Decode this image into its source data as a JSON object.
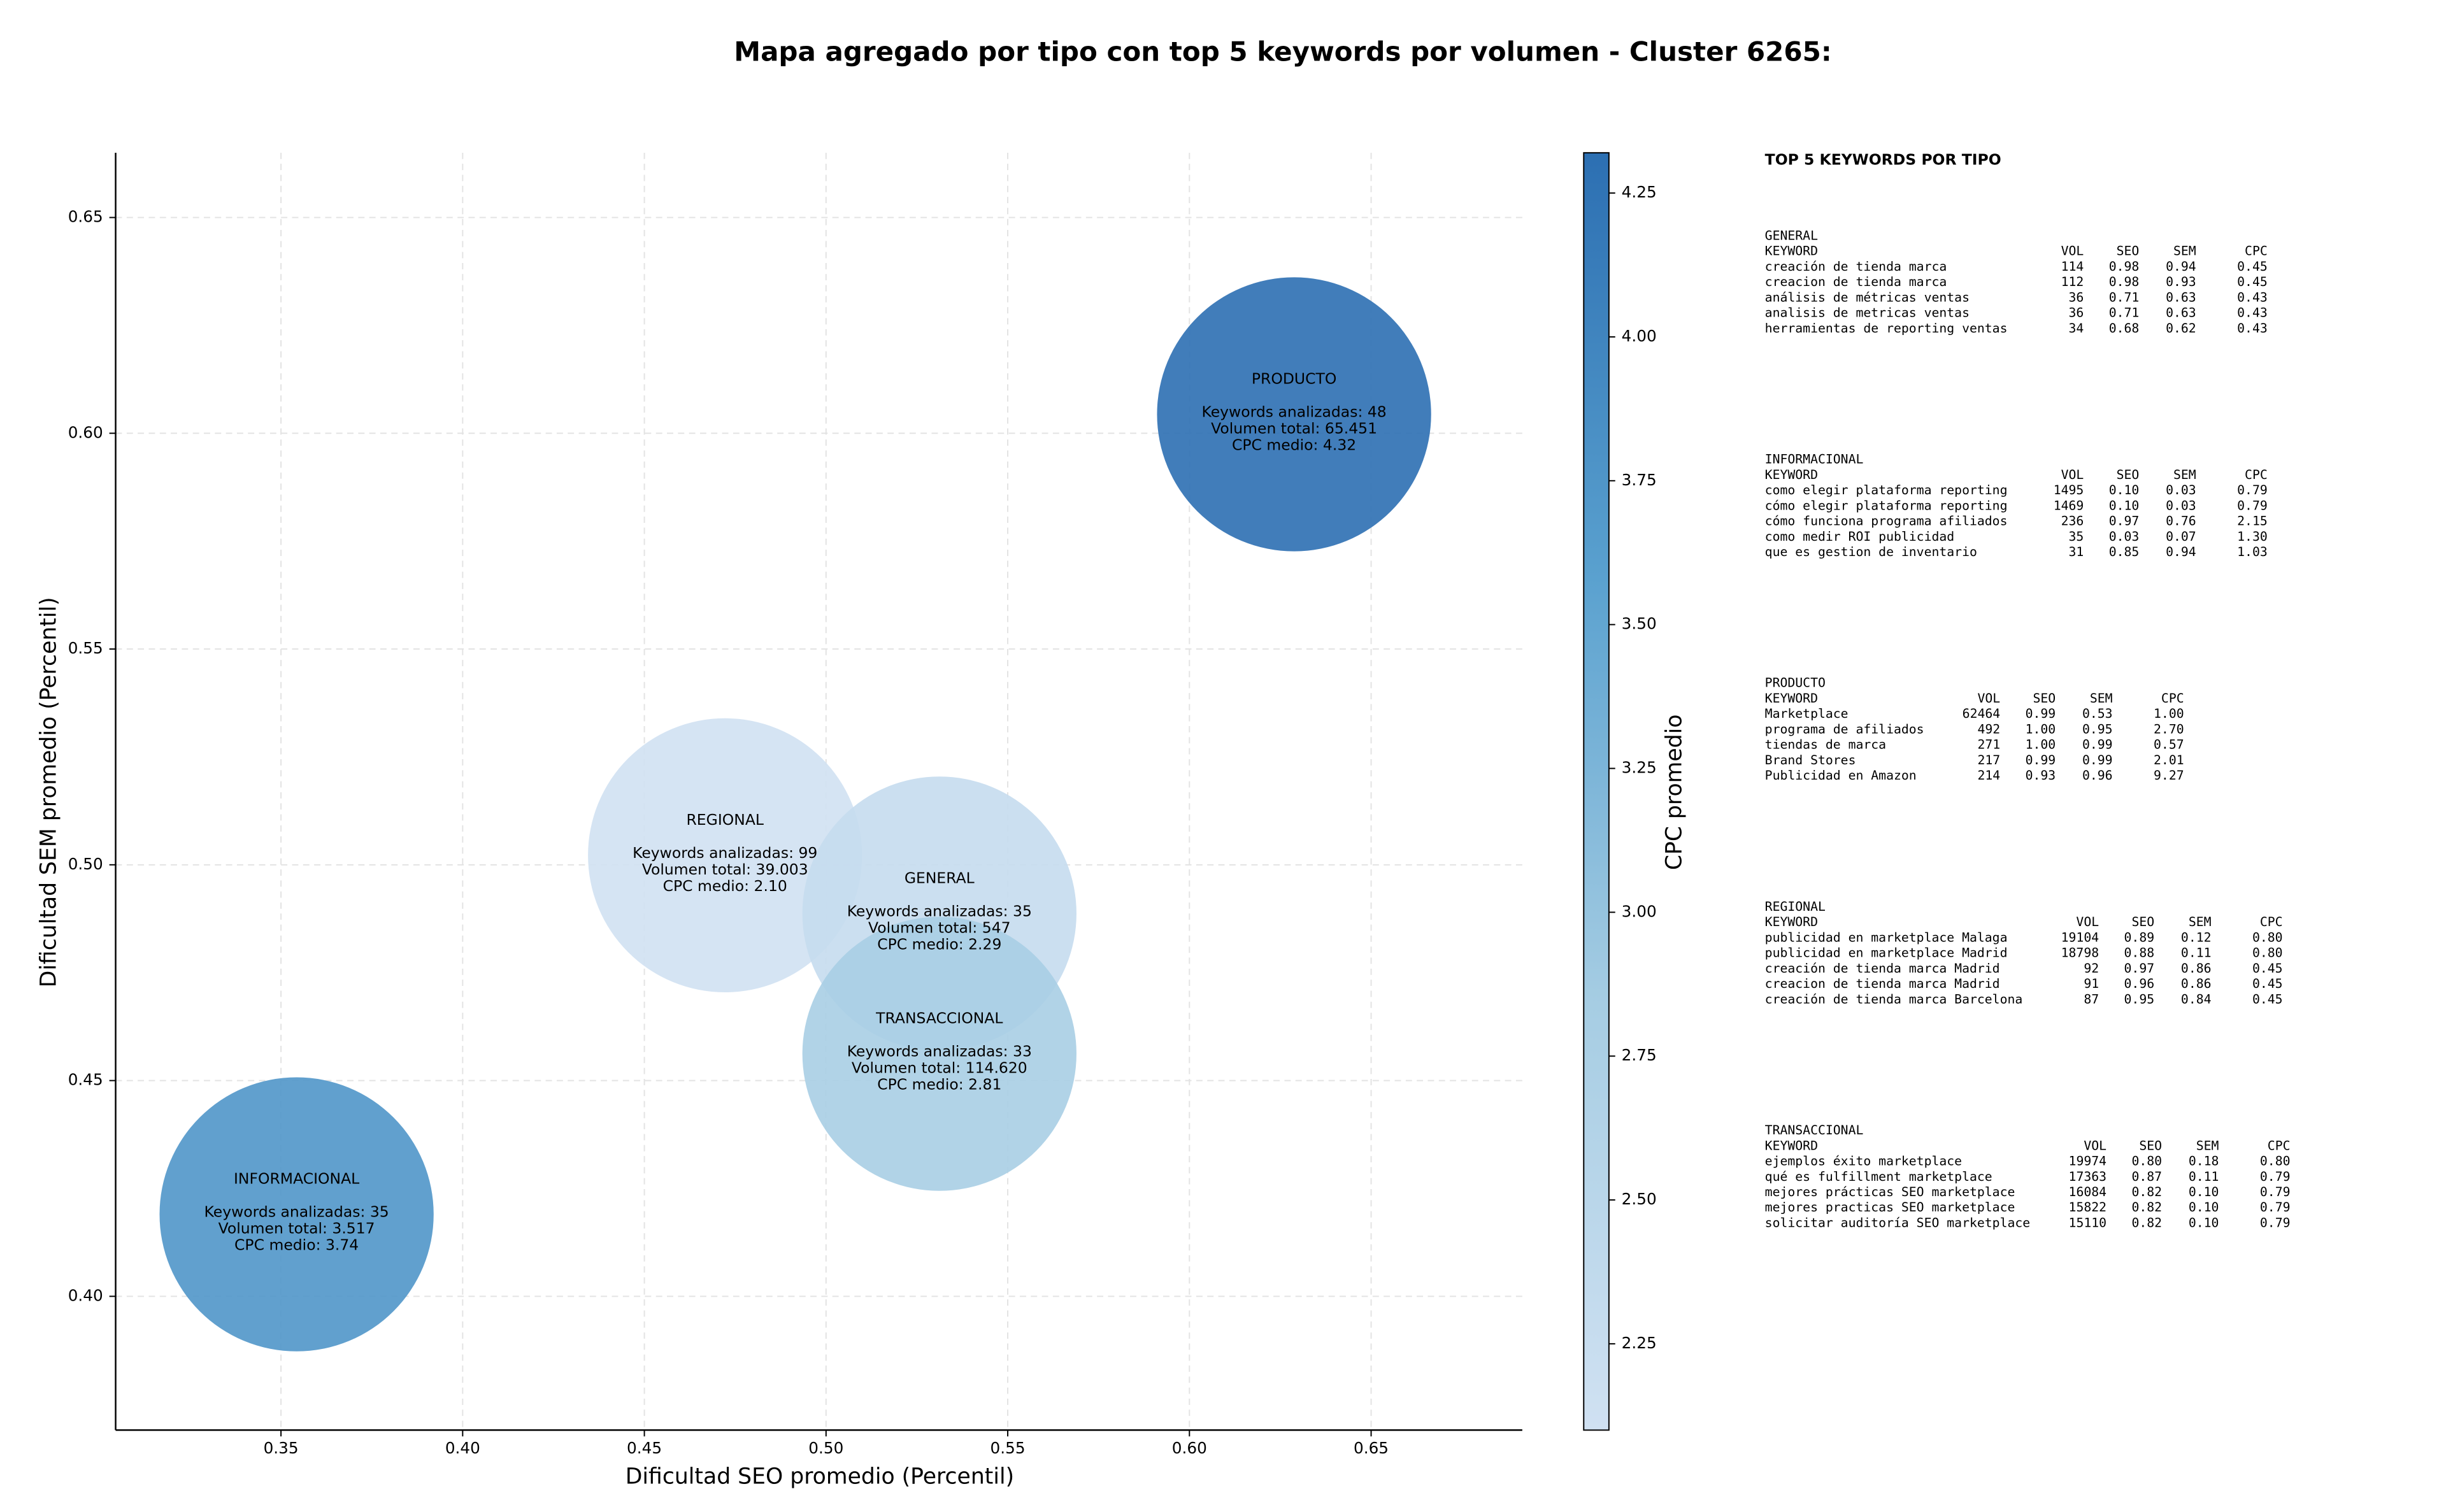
{
  "chart_data": {
    "type": "bubble",
    "title": "Mapa agregado por tipo con top 5 keywords por volumen - Cluster 6265:",
    "xlabel": "Dificultad SEO promedio (Percentil)",
    "ylabel": "Dificultad SEM promedio (Percentil)",
    "xlim": [
      0.3045,
      0.6916
    ],
    "ylim": [
      0.369,
      0.665
    ],
    "xticks": [
      0.35,
      {
        "value": 0.4,
        "label": "0.40"
      },
      0.45,
      {
        "value": 0.5,
        "label": "0.50"
      },
      0.55,
      {
        "value": 0.6,
        "label": "0.60"
      },
      0.65
    ],
    "yticks": [
      {
        "value": 0.4,
        "label": "0.40"
      },
      0.45,
      {
        "value": 0.5,
        "label": "0.50"
      },
      0.55,
      {
        "value": 0.6,
        "label": "0.60"
      },
      0.65
    ],
    "grid": true,
    "colorbar": {
      "label": "CPC promedio",
      "clim": [
        2.1,
        4.32
      ],
      "ticks": [
        2.25,
        {
          "value": 2.5,
          "label": "2.50"
        },
        2.75,
        {
          "value": 3,
          "label": "3.00"
        },
        3.25,
        {
          "value": 3.5,
          "label": "3.50"
        },
        3.75,
        {
          "value": 4,
          "label": "4.00"
        },
        4.25
      ],
      "colormap": [
        "#d0e1f2",
        "#a6cde3",
        "#5aa1cf",
        "#2c6fb2"
      ]
    },
    "points": [
      {
        "name": "PRODUCTO",
        "x": 0.6288,
        "y": 0.6044,
        "cpc": 4.32,
        "lines": [
          "Keywords analizadas: 48",
          "Volumen total: 65.451",
          "CPC medio: 4.32"
        ]
      },
      {
        "name": "REGIONAL",
        "x": 0.4722,
        "y": 0.5022,
        "cpc": 2.1,
        "lines": [
          "Keywords analizadas: 99",
          "Volumen total: 39.003",
          "CPC medio: 2.10"
        ]
      },
      {
        "name": "GENERAL",
        "x": 0.5312,
        "y": 0.4887,
        "cpc": 2.29,
        "lines": [
          "Keywords analizadas: 35",
          "Volumen total: 547",
          "CPC medio: 2.29"
        ]
      },
      {
        "name": "TRANSACCIONAL",
        "x": 0.5312,
        "y": 0.4562,
        "cpc": 2.81,
        "lines": [
          "Keywords analizadas: 33",
          "Volumen total: 114.620",
          "CPC medio: 2.81"
        ]
      },
      {
        "name": "INFORMACIONAL",
        "x": 0.3543,
        "y": 0.419,
        "cpc": 3.74,
        "lines": [
          "Keywords analizadas: 35",
          "Volumen total: 3.517",
          "CPC medio: 3.74"
        ]
      }
    ]
  },
  "keyword_panel": {
    "title": "TOP 5 KEYWORDS POR TIPO",
    "columns": [
      "KEYWORD",
      "VOL",
      "SEO",
      "SEM",
      "CPC"
    ],
    "groups": [
      {
        "name": "GENERAL",
        "rows": [
          [
            "creación de tienda marca",
            "114",
            "0.98",
            "0.94",
            "0.45"
          ],
          [
            "creacion de tienda marca",
            "112",
            "0.98",
            "0.93",
            "0.45"
          ],
          [
            "análisis de métricas ventas",
            "36",
            "0.71",
            "0.63",
            "0.43"
          ],
          [
            "analisis de metricas ventas",
            "36",
            "0.71",
            "0.63",
            "0.43"
          ],
          [
            "herramientas de reporting ventas",
            "34",
            "0.68",
            "0.62",
            "0.43"
          ]
        ]
      },
      {
        "name": "INFORMACIONAL",
        "rows": [
          [
            "como elegir plataforma reporting",
            "1495",
            "0.10",
            "0.03",
            "0.79"
          ],
          [
            "cómo elegir plataforma reporting",
            "1469",
            "0.10",
            "0.03",
            "0.79"
          ],
          [
            "cómo funciona programa afiliados",
            "236",
            "0.97",
            "0.76",
            "2.15"
          ],
          [
            "como medir ROI publicidad",
            "35",
            "0.03",
            "0.07",
            "1.30"
          ],
          [
            "que es gestion de inventario",
            "31",
            "0.85",
            "0.94",
            "1.03"
          ]
        ]
      },
      {
        "name": "PRODUCTO",
        "rows": [
          [
            "Marketplace",
            "62464",
            "0.99",
            "0.53",
            "1.00"
          ],
          [
            "programa de afiliados",
            "492",
            "1.00",
            "0.95",
            "2.70"
          ],
          [
            "tiendas de marca",
            "271",
            "1.00",
            "0.99",
            "0.57"
          ],
          [
            "Brand Stores",
            "217",
            "0.99",
            "0.99",
            "2.01"
          ],
          [
            "Publicidad en Amazon",
            "214",
            "0.93",
            "0.96",
            "9.27"
          ]
        ]
      },
      {
        "name": "REGIONAL",
        "rows": [
          [
            "publicidad en marketplace Malaga",
            "19104",
            "0.89",
            "0.12",
            "0.80"
          ],
          [
            "publicidad en marketplace Madrid",
            "18798",
            "0.88",
            "0.11",
            "0.80"
          ],
          [
            "creación de tienda marca Madrid",
            "92",
            "0.97",
            "0.86",
            "0.45"
          ],
          [
            "creacion de tienda marca Madrid",
            "91",
            "0.96",
            "0.86",
            "0.45"
          ],
          [
            "creación de tienda marca Barcelona",
            "87",
            "0.95",
            "0.84",
            "0.45"
          ]
        ]
      },
      {
        "name": "TRANSACCIONAL",
        "rows": [
          [
            "ejemplos éxito marketplace",
            "19974",
            "0.80",
            "0.18",
            "0.80"
          ],
          [
            "qué es fulfillment marketplace",
            "17363",
            "0.87",
            "0.11",
            "0.79"
          ],
          [
            "mejores prácticas SEO marketplace",
            "16084",
            "0.82",
            "0.10",
            "0.79"
          ],
          [
            "mejores practicas SEO marketplace",
            "15822",
            "0.82",
            "0.10",
            "0.79"
          ],
          [
            "solicitar auditoría SEO marketplace",
            "15110",
            "0.82",
            "0.10",
            "0.79"
          ]
        ]
      }
    ]
  }
}
